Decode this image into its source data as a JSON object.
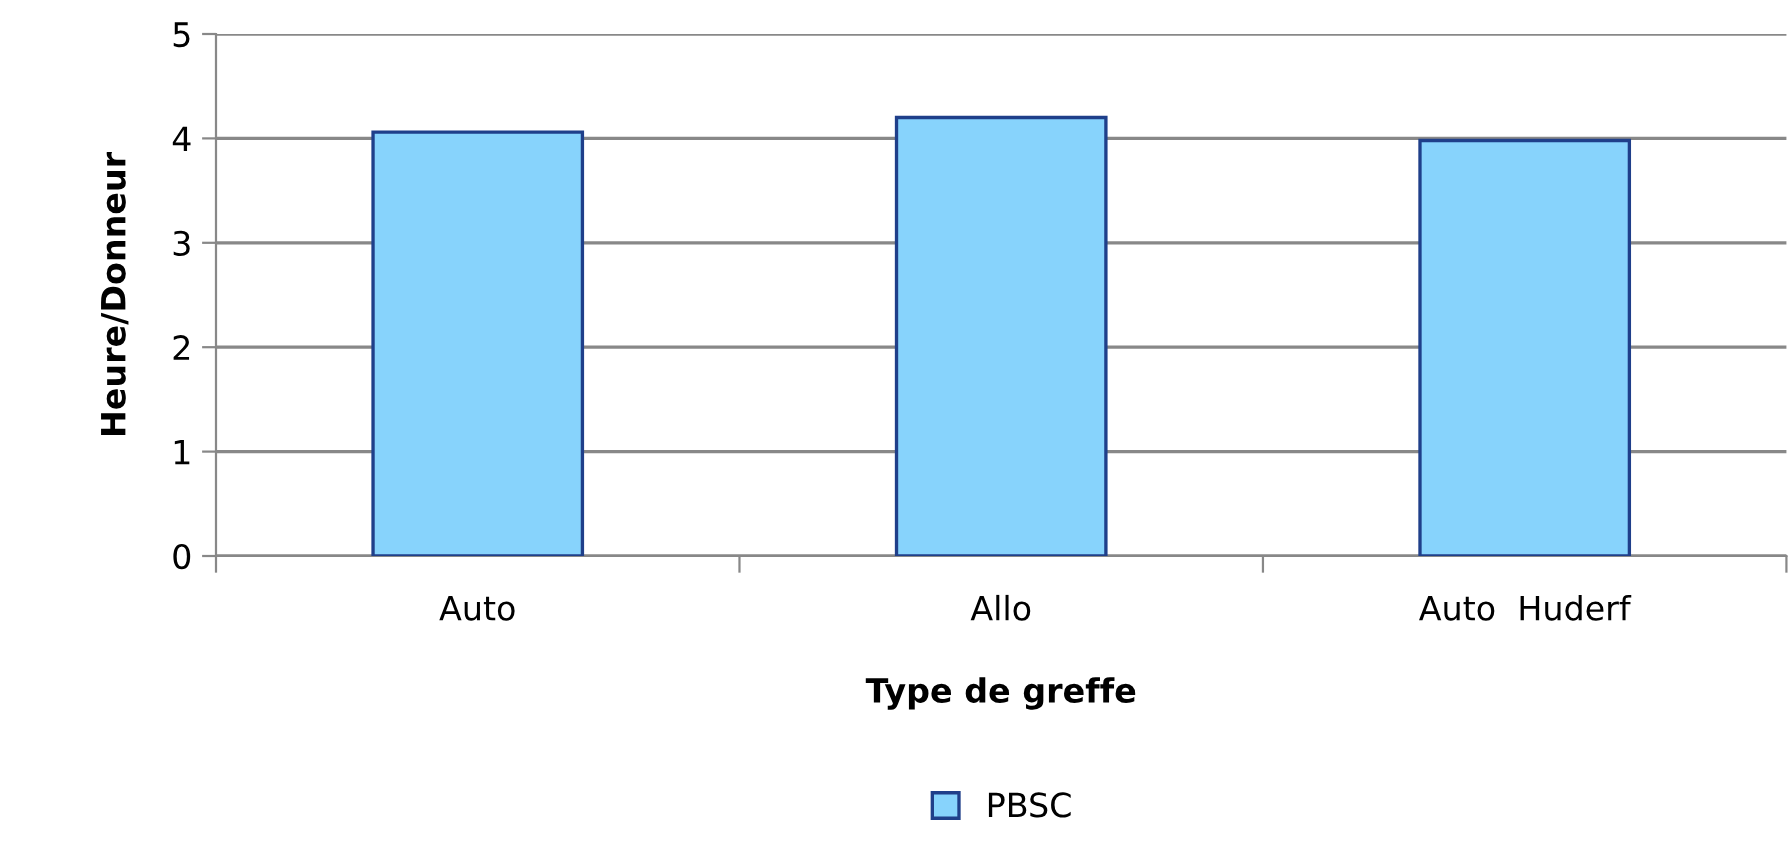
{
  "chart_data": {
    "type": "bar",
    "xlabel": "Type de greffe",
    "ylabel": "Heure/Donneur",
    "categories": [
      "Auto",
      "Allo",
      "Auto  Huderf"
    ],
    "series": [
      {
        "name": "PBSC",
        "color": "#87d3fc",
        "values": [
          4.06,
          4.2,
          3.98
        ]
      }
    ],
    "ylim": [
      0,
      5
    ],
    "yticks": [
      0,
      1,
      2,
      3,
      4,
      5
    ],
    "grid": "y",
    "legend": "bottom"
  }
}
